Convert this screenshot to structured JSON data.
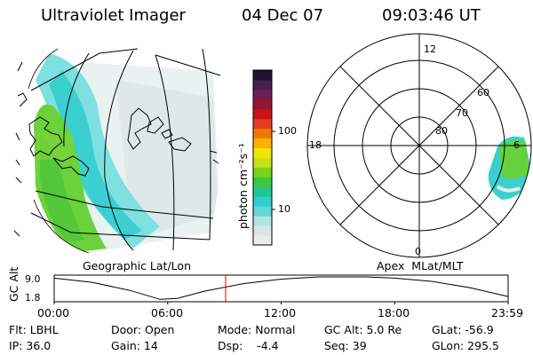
{
  "header": {
    "instrument": "Ultraviolet Imager",
    "date": "04 Dec 07",
    "time": "09:03:46 UT"
  },
  "map": {
    "caption": "Geographic Lat/Lon"
  },
  "colorbar": {
    "unit_label": "photon cm⁻²s⁻¹",
    "ticks": [
      {
        "label": "100",
        "value": 100
      },
      {
        "label": "10",
        "value": 10
      }
    ],
    "colors": [
      "#ececec",
      "#d6e6e6",
      "#b0e4e4",
      "#66d6d6",
      "#2ecece",
      "#20c890",
      "#3cc83c",
      "#78d21e",
      "#c8e014",
      "#f0e600",
      "#f5b400",
      "#f07800",
      "#e63c1e",
      "#c81414",
      "#961432",
      "#6e1e50",
      "#461e50",
      "#1e1432"
    ]
  },
  "polar": {
    "caption": "Apex  MLat/MLT",
    "mlt_labels": {
      "top": "12",
      "left": "18",
      "right": "6",
      "bottom": "0"
    },
    "lat_labels": [
      "60",
      "70",
      "80"
    ]
  },
  "altitude": {
    "axis_label": "GC Alt",
    "y_ticks": [
      "9.0",
      "1.8"
    ],
    "x_ticks": [
      "00:00",
      "06:00",
      "12:00",
      "18:00",
      "23:59"
    ],
    "current_time_hours": 9.063,
    "ylim": [
      1.8,
      9.0
    ],
    "curve": [
      {
        "t": 0.0,
        "alt": 8.6
      },
      {
        "t": 2.0,
        "alt": 7.3
      },
      {
        "t": 4.0,
        "alt": 4.8
      },
      {
        "t": 5.6,
        "alt": 2.0
      },
      {
        "t": 6.5,
        "alt": 2.3
      },
      {
        "t": 8.0,
        "alt": 4.6
      },
      {
        "t": 10.0,
        "alt": 6.9
      },
      {
        "t": 12.0,
        "alt": 8.3
      },
      {
        "t": 14.0,
        "alt": 9.0
      },
      {
        "t": 16.5,
        "alt": 9.0
      },
      {
        "t": 18.0,
        "alt": 8.6
      },
      {
        "t": 20.0,
        "alt": 7.6
      },
      {
        "t": 22.0,
        "alt": 5.6
      },
      {
        "t": 23.98,
        "alt": 2.9
      }
    ]
  },
  "info": {
    "flt": "Flt: LBHL",
    "ip": "IP: 36.0",
    "door": "Door: Open",
    "gain": "Gain: 14",
    "mode": "Mode: Normal",
    "dsp": "Dsp:    -4.4",
    "gcalt": "GC Alt: 5.0 Re",
    "seq": "Seq: 39",
    "glat": "GLat: -56.9",
    "glon": "GLon: 295.5"
  },
  "colors": {
    "marker": "#e00000",
    "aurora_green": "#5cd23c",
    "aurora_cyan": "#3ed0d0",
    "aurora_pale": "#cfe6e6"
  }
}
